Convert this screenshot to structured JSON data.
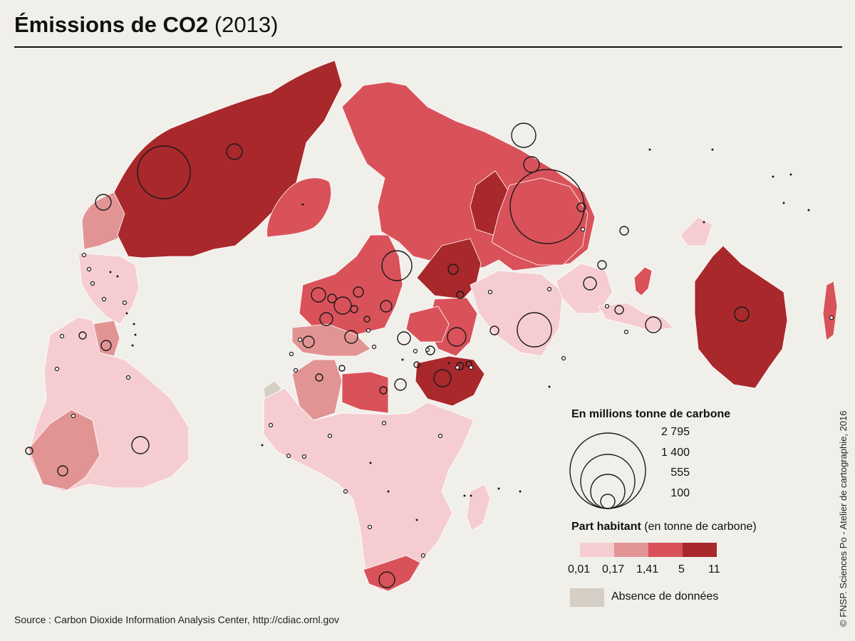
{
  "title": {
    "main": "Émissions de CO2",
    "year": "(2013)"
  },
  "legend": {
    "size_title": "En millions tonne de carbone",
    "size_values": [
      "2 795",
      "1 400",
      "555",
      "100"
    ],
    "part_title_bold": "Part habitant",
    "part_title_rest": "(en tonne de carbone)",
    "class_breaks": [
      "0,01",
      "0,17",
      "1,41",
      "5",
      "11"
    ],
    "class_colors": [
      "#f5cdd1",
      "#e29494",
      "#d9525a",
      "#a8282c"
    ],
    "nodata_label": "Absence de données",
    "nodata_color": "#d4cec4"
  },
  "source": "Source : Carbon Dioxide Information Analysis Center, http://cdiac.ornl.gov",
  "credit": "© FNSP. Sciences Po - Atelier de cartographie, 2016",
  "colors": {
    "background": "#f1efea",
    "border": "#ffffff",
    "circle_stroke": "#1a1a1a"
  }
}
